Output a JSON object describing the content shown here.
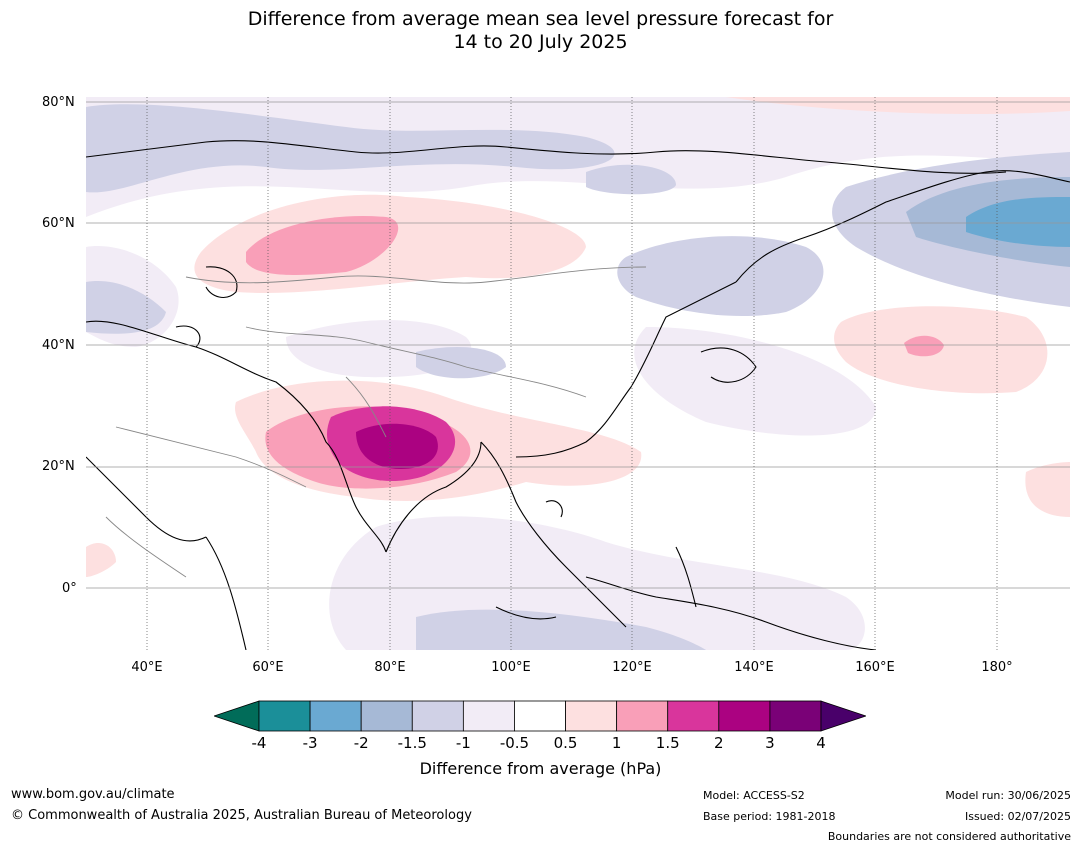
{
  "title": {
    "line1": "Difference from average mean sea level pressure forecast for",
    "line2": "14 to 20 July 2025"
  },
  "map": {
    "lat_labels": [
      "80°N",
      "60°N",
      "40°N",
      "20°N",
      "0°"
    ],
    "lon_labels": [
      "40°E",
      "60°E",
      "80°E",
      "100°E",
      "120°E",
      "140°E",
      "160°E",
      "180°"
    ],
    "extent": {
      "lon_min": 30,
      "lon_max": 192,
      "lat_min": -10,
      "lat_max": 80
    }
  },
  "colorbar": {
    "ticks": [
      "-4",
      "-3",
      "-2",
      "-1.5",
      "-1",
      "-0.5",
      "0.5",
      "1",
      "1.5",
      "2",
      "3",
      "4"
    ],
    "colors": [
      "#016c59",
      "#1b8f99",
      "#6aa9d2",
      "#a6b9d6",
      "#d0d1e6",
      "#f2ecf6",
      "#ffffff",
      "#fde0e0",
      "#f99fb8",
      "#d9359c",
      "#ab0281",
      "#7a0177",
      "#49006a"
    ],
    "label": "Difference from average (hPa)"
  },
  "footer": {
    "website": "www.bom.gov.au/climate",
    "copyright": "© Commonwealth of Australia 2025, Australian Bureau of Meteorology",
    "model": "Model: ACCESS-S2",
    "base_period": "Base period: 1981-2018",
    "model_run": "Model run: 30/06/2025",
    "issued": "Issued: 02/07/2025",
    "disclaimer": "Boundaries are not considered authoritative"
  }
}
